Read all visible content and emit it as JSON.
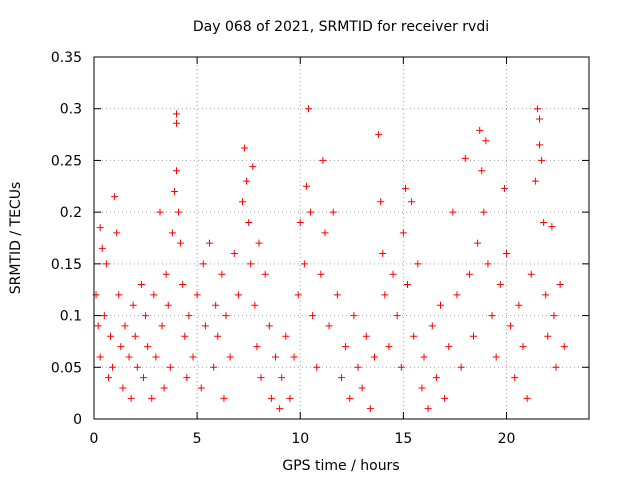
{
  "chart_data": {
    "type": "scatter",
    "title": "Day 068 of 2021, SRMTID for receiver rvdi",
    "xlabel": "GPS time / hours",
    "ylabel": "SRMTID / TECUs",
    "xlim": [
      0,
      24
    ],
    "ylim": [
      0,
      0.35
    ],
    "xticks": [
      0,
      5,
      10,
      15,
      20
    ],
    "yticks": [
      0,
      0.05,
      0.1,
      0.15,
      0.2,
      0.25,
      0.3,
      0.35
    ],
    "xtick_labels": [
      "0",
      "5",
      "10",
      "15",
      "20"
    ],
    "ytick_labels": [
      "0",
      "0.05",
      "0.1",
      "0.15",
      "0.2",
      "0.25",
      "0.3",
      "0.35"
    ],
    "grid": true,
    "marker": "+",
    "color": "#ff0000",
    "series": [
      {
        "name": "rvdi",
        "points": [
          [
            0.1,
            0.12
          ],
          [
            0.2,
            0.09
          ],
          [
            0.3,
            0.06
          ],
          [
            0.3,
            0.185
          ],
          [
            0.4,
            0.165
          ],
          [
            0.5,
            0.1
          ],
          [
            0.6,
            0.15
          ],
          [
            0.7,
            0.04
          ],
          [
            0.8,
            0.08
          ],
          [
            0.9,
            0.05
          ],
          [
            1.0,
            0.215
          ],
          [
            1.1,
            0.18
          ],
          [
            1.2,
            0.12
          ],
          [
            1.3,
            0.07
          ],
          [
            1.4,
            0.03
          ],
          [
            1.5,
            0.09
          ],
          [
            1.7,
            0.06
          ],
          [
            1.8,
            0.02
          ],
          [
            1.9,
            0.11
          ],
          [
            2.0,
            0.08
          ],
          [
            2.1,
            0.05
          ],
          [
            2.3,
            0.13
          ],
          [
            2.4,
            0.04
          ],
          [
            2.5,
            0.1
          ],
          [
            2.6,
            0.07
          ],
          [
            2.8,
            0.02
          ],
          [
            2.9,
            0.12
          ],
          [
            3.0,
            0.06
          ],
          [
            3.2,
            0.2
          ],
          [
            3.3,
            0.09
          ],
          [
            3.4,
            0.03
          ],
          [
            3.5,
            0.14
          ],
          [
            3.6,
            0.11
          ],
          [
            3.7,
            0.05
          ],
          [
            3.8,
            0.18
          ],
          [
            3.9,
            0.22
          ],
          [
            4.0,
            0.286
          ],
          [
            4.0,
            0.295
          ],
          [
            4.0,
            0.24
          ],
          [
            4.1,
            0.2
          ],
          [
            4.2,
            0.17
          ],
          [
            4.3,
            0.13
          ],
          [
            4.4,
            0.08
          ],
          [
            4.5,
            0.04
          ],
          [
            4.6,
            0.1
          ],
          [
            4.8,
            0.06
          ],
          [
            5.0,
            0.12
          ],
          [
            5.2,
            0.03
          ],
          [
            5.3,
            0.15
          ],
          [
            5.4,
            0.09
          ],
          [
            5.6,
            0.17
          ],
          [
            5.8,
            0.05
          ],
          [
            5.9,
            0.11
          ],
          [
            6.0,
            0.08
          ],
          [
            6.2,
            0.14
          ],
          [
            6.3,
            0.02
          ],
          [
            6.4,
            0.1
          ],
          [
            6.6,
            0.06
          ],
          [
            6.8,
            0.16
          ],
          [
            7.0,
            0.12
          ],
          [
            7.2,
            0.21
          ],
          [
            7.3,
            0.262
          ],
          [
            7.4,
            0.23
          ],
          [
            7.5,
            0.19
          ],
          [
            7.6,
            0.15
          ],
          [
            7.7,
            0.244
          ],
          [
            7.8,
            0.11
          ],
          [
            7.9,
            0.07
          ],
          [
            8.0,
            0.17
          ],
          [
            8.1,
            0.04
          ],
          [
            8.3,
            0.14
          ],
          [
            8.5,
            0.09
          ],
          [
            8.6,
            0.02
          ],
          [
            8.8,
            0.06
          ],
          [
            9.0,
            0.01
          ],
          [
            9.1,
            0.04
          ],
          [
            9.3,
            0.08
          ],
          [
            9.5,
            0.02
          ],
          [
            9.7,
            0.06
          ],
          [
            9.9,
            0.12
          ],
          [
            10.0,
            0.19
          ],
          [
            10.2,
            0.15
          ],
          [
            10.3,
            0.225
          ],
          [
            10.4,
            0.3
          ],
          [
            10.5,
            0.2
          ],
          [
            10.6,
            0.1
          ],
          [
            10.8,
            0.05
          ],
          [
            11.0,
            0.14
          ],
          [
            11.1,
            0.25
          ],
          [
            11.2,
            0.18
          ],
          [
            11.4,
            0.09
          ],
          [
            11.6,
            0.2
          ],
          [
            11.8,
            0.12
          ],
          [
            12.0,
            0.04
          ],
          [
            12.2,
            0.07
          ],
          [
            12.4,
            0.02
          ],
          [
            12.6,
            0.1
          ],
          [
            12.8,
            0.05
          ],
          [
            13.0,
            0.03
          ],
          [
            13.2,
            0.08
          ],
          [
            13.4,
            0.01
          ],
          [
            13.6,
            0.06
          ],
          [
            13.8,
            0.275
          ],
          [
            13.9,
            0.21
          ],
          [
            14.0,
            0.16
          ],
          [
            14.1,
            0.12
          ],
          [
            14.3,
            0.07
          ],
          [
            14.5,
            0.14
          ],
          [
            14.7,
            0.1
          ],
          [
            14.9,
            0.05
          ],
          [
            15.0,
            0.18
          ],
          [
            15.1,
            0.223
          ],
          [
            15.2,
            0.13
          ],
          [
            15.4,
            0.21
          ],
          [
            15.5,
            0.08
          ],
          [
            15.7,
            0.15
          ],
          [
            15.9,
            0.03
          ],
          [
            16.0,
            0.06
          ],
          [
            16.2,
            0.01
          ],
          [
            16.4,
            0.09
          ],
          [
            16.6,
            0.04
          ],
          [
            16.8,
            0.11
          ],
          [
            17.0,
            0.02
          ],
          [
            17.2,
            0.07
          ],
          [
            17.4,
            0.2
          ],
          [
            17.6,
            0.12
          ],
          [
            17.8,
            0.05
          ],
          [
            18.0,
            0.252
          ],
          [
            18.2,
            0.14
          ],
          [
            18.4,
            0.08
          ],
          [
            18.6,
            0.17
          ],
          [
            18.7,
            0.279
          ],
          [
            18.8,
            0.24
          ],
          [
            18.9,
            0.2
          ],
          [
            19.0,
            0.269
          ],
          [
            19.1,
            0.15
          ],
          [
            19.3,
            0.1
          ],
          [
            19.5,
            0.06
          ],
          [
            19.7,
            0.13
          ],
          [
            19.9,
            0.223
          ],
          [
            20.0,
            0.16
          ],
          [
            20.2,
            0.09
          ],
          [
            20.4,
            0.04
          ],
          [
            20.6,
            0.11
          ],
          [
            20.8,
            0.07
          ],
          [
            21.0,
            0.02
          ],
          [
            21.2,
            0.14
          ],
          [
            21.4,
            0.23
          ],
          [
            21.5,
            0.3
          ],
          [
            21.6,
            0.29
          ],
          [
            21.6,
            0.265
          ],
          [
            21.7,
            0.25
          ],
          [
            21.8,
            0.19
          ],
          [
            21.9,
            0.12
          ],
          [
            22.0,
            0.08
          ],
          [
            22.2,
            0.186
          ],
          [
            22.3,
            0.1
          ],
          [
            22.4,
            0.05
          ],
          [
            22.6,
            0.13
          ],
          [
            22.8,
            0.07
          ]
        ]
      }
    ]
  }
}
